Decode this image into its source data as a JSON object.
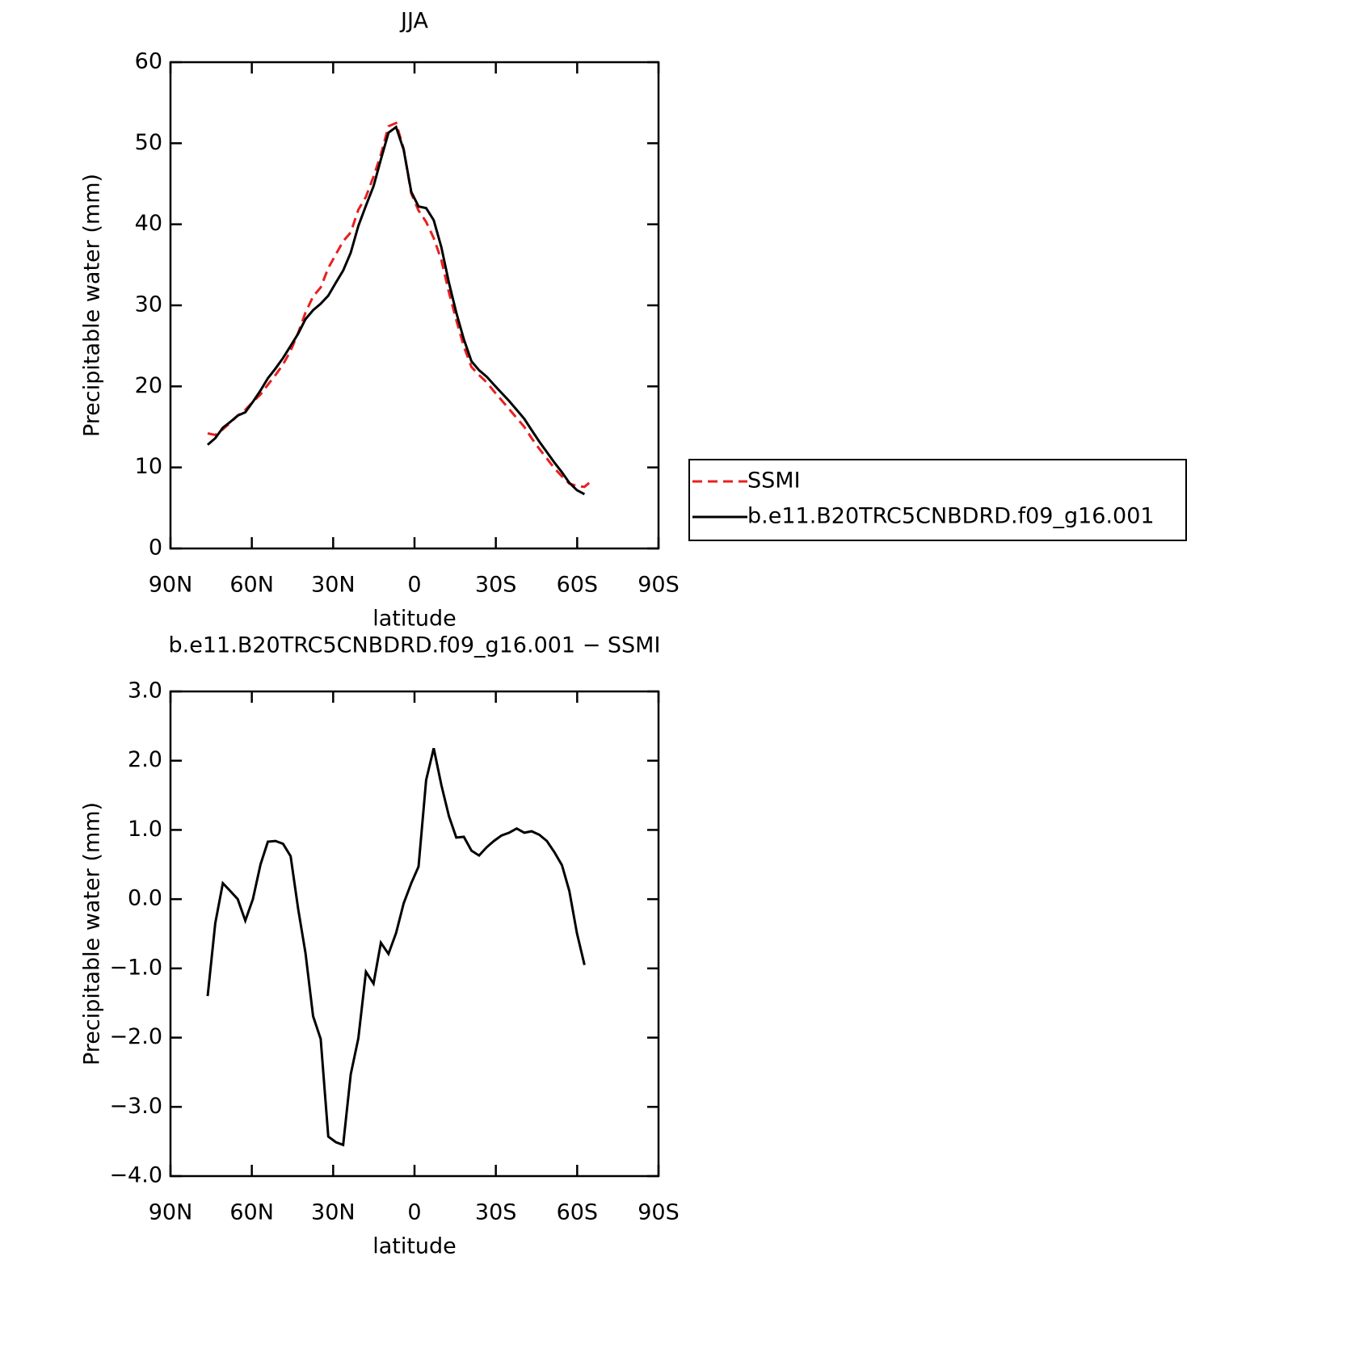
{
  "chart_data": [
    {
      "type": "line",
      "title": "JJA",
      "xlabel": "latitude",
      "ylabel": "Precipitable water (mm)",
      "x": [
        76.3,
        73.5,
        70.7,
        68.0,
        65.2,
        62.4,
        59.6,
        56.8,
        54.1,
        51.3,
        48.5,
        45.7,
        42.9,
        40.2,
        37.4,
        34.6,
        31.8,
        29.0,
        26.3,
        23.5,
        20.7,
        17.9,
        15.1,
        12.4,
        9.6,
        6.8,
        4.0,
        1.2,
        -1.5,
        -4.3,
        -7.1,
        -9.9,
        -12.7,
        -15.4,
        -18.2,
        -21.0,
        -23.8,
        -26.6,
        -29.3,
        -32.1,
        -34.9,
        -37.7,
        -40.5,
        -43.2,
        -46.0,
        -48.8,
        -51.6,
        -54.4,
        -57.1,
        -59.9,
        -62.7,
        -65.5
      ],
      "series": [
        {
          "name": "SSMI",
          "color": "#e8201e",
          "dash": true,
          "values": [
            14.2,
            14.0,
            14.7,
            15.5,
            16.4,
            17.1,
            18.1,
            19.0,
            20.2,
            21.4,
            22.7,
            24.4,
            26.6,
            29.1,
            31.1,
            32.2,
            34.6,
            36.3,
            37.9,
            39.0,
            41.8,
            43.4,
            45.9,
            48.6,
            52.1,
            52.5,
            49.3,
            43.8,
            41.7,
            40.3,
            38.3,
            35.6,
            31.6,
            28.2,
            24.9,
            22.4,
            21.4,
            20.5,
            19.4,
            18.3,
            17.2,
            16.1,
            15.0,
            13.6,
            12.3,
            11.1,
            9.9,
            8.9,
            8.0,
            7.7,
            7.6,
            8.4
          ]
        },
        {
          "name": "b.e11.B20TRC5CNBDRD.f09_g16.001",
          "color": "#000000",
          "dash": false,
          "values": [
            12.8,
            13.6,
            14.9,
            15.6,
            16.4,
            16.8,
            18.1,
            19.5,
            21.0,
            22.2,
            23.5,
            25.0,
            26.5,
            28.3,
            29.4,
            30.2,
            31.2,
            32.8,
            34.3,
            36.5,
            39.8,
            42.3,
            44.7,
            48.0,
            51.3,
            52.0,
            49.2,
            44.0,
            42.2,
            42.0,
            40.5,
            37.2,
            32.8,
            29.1,
            25.8,
            23.1,
            22.0,
            21.2,
            20.2,
            19.2,
            18.2,
            17.1,
            16.0,
            14.6,
            13.2,
            11.9,
            10.6,
            9.4,
            8.1,
            7.2,
            6.7,
            null
          ]
        }
      ],
      "xlim": [
        90,
        -90
      ],
      "xticks": [
        {
          "value": 90,
          "label": "90N"
        },
        {
          "value": 60,
          "label": "60N"
        },
        {
          "value": 30,
          "label": "30N"
        },
        0,
        {
          "value": -30,
          "label": "30S"
        },
        {
          "value": -60,
          "label": "60S"
        },
        {
          "value": -90,
          "label": "90S"
        }
      ],
      "ylim": [
        0,
        60
      ],
      "yticks": [
        0,
        10,
        20,
        30,
        40,
        50,
        60
      ],
      "legend": "right"
    },
    {
      "type": "line",
      "title": "b.e11.B20TRC5CNBDRD.f09_g16.001 − SSMI",
      "xlabel": "latitude",
      "ylabel": "Precipitable water (mm)",
      "x": [
        76.3,
        73.5,
        70.7,
        68.0,
        65.2,
        62.4,
        59.6,
        56.8,
        54.1,
        51.3,
        48.5,
        45.7,
        42.9,
        40.2,
        37.4,
        34.6,
        31.8,
        29.0,
        26.3,
        23.5,
        20.7,
        17.9,
        15.1,
        12.4,
        9.6,
        6.8,
        4.0,
        1.2,
        -1.5,
        -4.3,
        -7.1,
        -9.9,
        -12.7,
        -15.4,
        -18.2,
        -21.0,
        -23.8,
        -26.6,
        -29.3,
        -32.1,
        -34.9,
        -37.7,
        -40.5,
        -43.2,
        -46.0,
        -48.8,
        -51.6,
        -54.4,
        -57.1,
        -59.9,
        -62.7
      ],
      "values": [
        -1.4,
        -0.35,
        0.23,
        0.12,
        0.0,
        -0.31,
        0.0,
        0.5,
        0.83,
        0.84,
        0.8,
        0.62,
        -0.14,
        -0.78,
        -1.69,
        -2.02,
        -3.43,
        -3.51,
        -3.55,
        -2.53,
        -2.01,
        -1.05,
        -1.22,
        -0.63,
        -0.79,
        -0.49,
        -0.06,
        0.23,
        0.47,
        1.72,
        2.18,
        1.65,
        1.2,
        0.89,
        0.9,
        0.7,
        0.63,
        0.75,
        0.84,
        0.92,
        0.96,
        1.02,
        0.96,
        0.98,
        0.93,
        0.84,
        0.68,
        0.49,
        0.12,
        -0.49,
        -0.95
      ],
      "color": "#000000",
      "xlim": [
        90,
        -90
      ],
      "xticks": [
        {
          "value": 90,
          "label": "90N"
        },
        {
          "value": 60,
          "label": "60N"
        },
        {
          "value": 30,
          "label": "30N"
        },
        0,
        {
          "value": -30,
          "label": "30S"
        },
        {
          "value": -60,
          "label": "60S"
        },
        {
          "value": -90,
          "label": "90S"
        }
      ],
      "ylim": [
        -4,
        3
      ],
      "yticks": [
        {
          "value": -4,
          "label": "−4.0"
        },
        {
          "value": -3,
          "label": "−3.0"
        },
        {
          "value": -2,
          "label": "−2.0"
        },
        {
          "value": -1,
          "label": "−1.0"
        },
        {
          "value": 0,
          "label": "0.0"
        },
        {
          "value": 1,
          "label": "1.0"
        },
        {
          "value": 2,
          "label": "2.0"
        },
        {
          "value": 3,
          "label": "3.0"
        }
      ]
    }
  ]
}
